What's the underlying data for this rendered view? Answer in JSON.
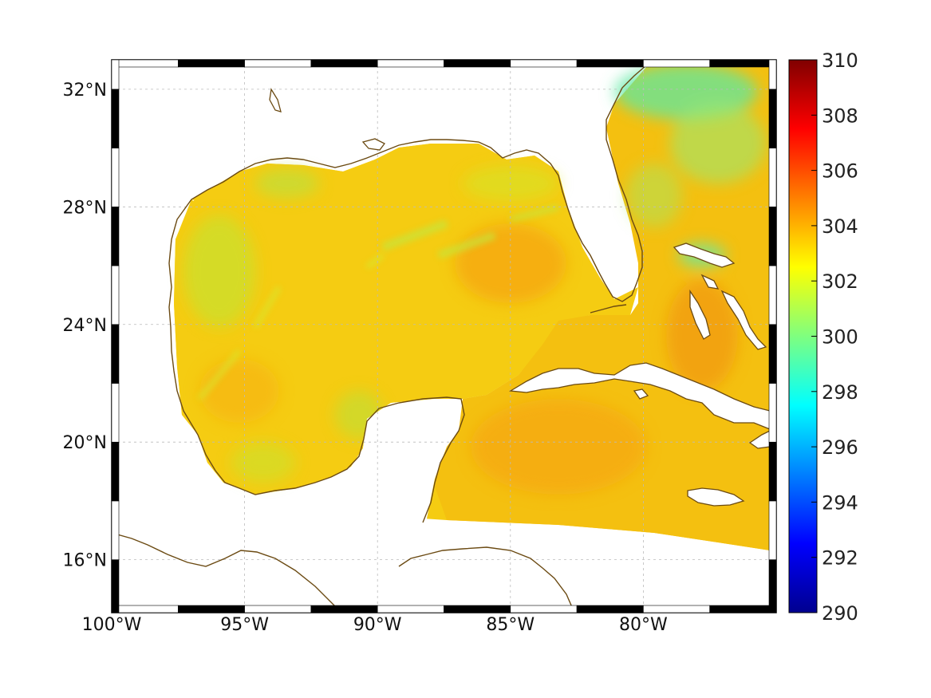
{
  "chart_data": {
    "type": "heatmap",
    "map": {
      "lon_range": [
        -100,
        -75
      ],
      "lat_range": [
        14.2,
        33.0
      ],
      "lon_ticks": [
        {
          "value": -100,
          "label": "100°W"
        },
        {
          "value": -95,
          "label": "95°W"
        },
        {
          "value": -90,
          "label": "90°W"
        },
        {
          "value": -85,
          "label": "85°W"
        },
        {
          "value": -80,
          "label": "80°W"
        }
      ],
      "lat_ticks": [
        {
          "value": 16,
          "label": "16°N"
        },
        {
          "value": 20,
          "label": "20°N"
        },
        {
          "value": 24,
          "label": "24°N"
        },
        {
          "value": 28,
          "label": "28°N"
        },
        {
          "value": 32,
          "label": "32°N"
        }
      ],
      "grid": true
    },
    "colorbar": {
      "colormap": "jet",
      "range": [
        290,
        310
      ],
      "ticks": [
        {
          "value": 290,
          "label": "290"
        },
        {
          "value": 292,
          "label": "292"
        },
        {
          "value": 294,
          "label": "294"
        },
        {
          "value": 296,
          "label": "296"
        },
        {
          "value": 298,
          "label": "298"
        },
        {
          "value": 300,
          "label": "300"
        },
        {
          "value": 302,
          "label": "302"
        },
        {
          "value": 304,
          "label": "304"
        },
        {
          "value": 306,
          "label": "306"
        },
        {
          "value": 308,
          "label": "308"
        },
        {
          "value": 310,
          "label": "310"
        }
      ]
    },
    "field_samples": [
      {
        "lon": -85,
        "lat": 26.0,
        "value": 303.6
      },
      {
        "lon": -84,
        "lat": 19.5,
        "value": 303.5
      },
      {
        "lon": -77.5,
        "lat": 24.0,
        "value": 303.6
      },
      {
        "lon": -97.5,
        "lat": 22.0,
        "value": 303.2
      },
      {
        "lon": -94.5,
        "lat": 25.5,
        "value": 302.4
      },
      {
        "lon": -77.5,
        "lat": 31.5,
        "value": 301.0
      },
      {
        "lon": -91,
        "lat": 20.8,
        "value": 302.2
      },
      {
        "lon": -90,
        "lat": 28.8,
        "value": 302.5
      }
    ],
    "colors": {
      "coastline": "#6b4a12",
      "land": "#ffffff"
    }
  }
}
